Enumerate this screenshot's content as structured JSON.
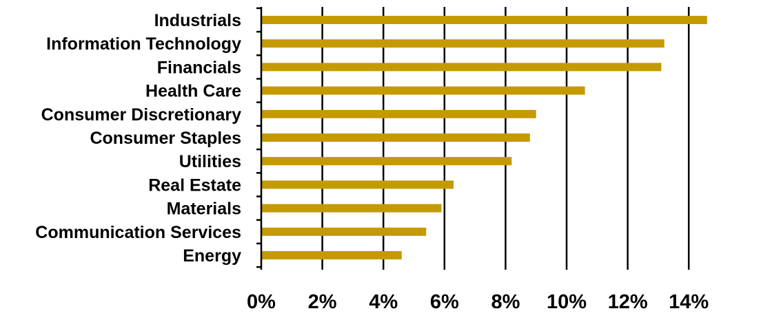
{
  "chart_data": {
    "type": "bar",
    "orientation": "horizontal",
    "title": "",
    "xlabel": "",
    "ylabel": "",
    "categories": [
      "Industrials",
      "Information Technology",
      "Financials",
      "Health Care",
      "Consumer Discretionary",
      "Consumer Staples",
      "Utilities",
      "Real Estate",
      "Materials",
      "Communication Services",
      "Energy"
    ],
    "values": [
      14.6,
      13.2,
      13.1,
      10.6,
      9.0,
      8.8,
      8.2,
      6.3,
      5.9,
      5.4,
      4.6
    ],
    "value_unit": "%",
    "xlim": [
      0,
      14
    ],
    "x_ticks": [
      0,
      2,
      4,
      6,
      8,
      10,
      12,
      14
    ],
    "x_tick_labels": [
      "0%",
      "2%",
      "4%",
      "6%",
      "8%",
      "10%",
      "12%",
      "14%"
    ],
    "grid": "vertical",
    "legend": "none",
    "colors": {
      "bar": "#c49a00",
      "grid": "#000000",
      "axis": "#000000",
      "text": "#000000"
    }
  }
}
